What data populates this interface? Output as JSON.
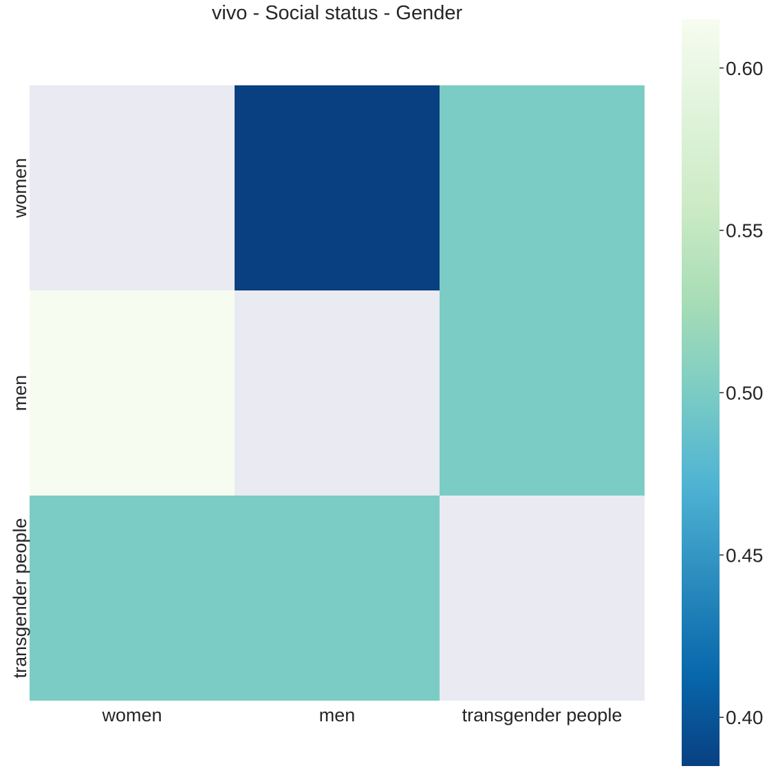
{
  "chart_data": {
    "type": "heatmap",
    "title": "vivo - Social status - Gender",
    "x_labels": [
      "women",
      "men",
      "transgender people"
    ],
    "y_labels": [
      "women",
      "men",
      "transgender people"
    ],
    "values": [
      [
        null,
        0.385,
        0.5
      ],
      [
        0.615,
        null,
        0.5
      ],
      [
        0.5,
        0.5,
        null
      ]
    ],
    "colorbar": {
      "colormap": "GnBu_r",
      "vmin": 0.385,
      "vmax": 0.615,
      "ticks": [
        0.4,
        0.45,
        0.5,
        0.55,
        0.6
      ],
      "tick_labels": [
        "0.40",
        "0.45",
        "0.50",
        "0.55",
        "0.60"
      ]
    },
    "missing_color": "#eaeaf2",
    "grid": false
  }
}
